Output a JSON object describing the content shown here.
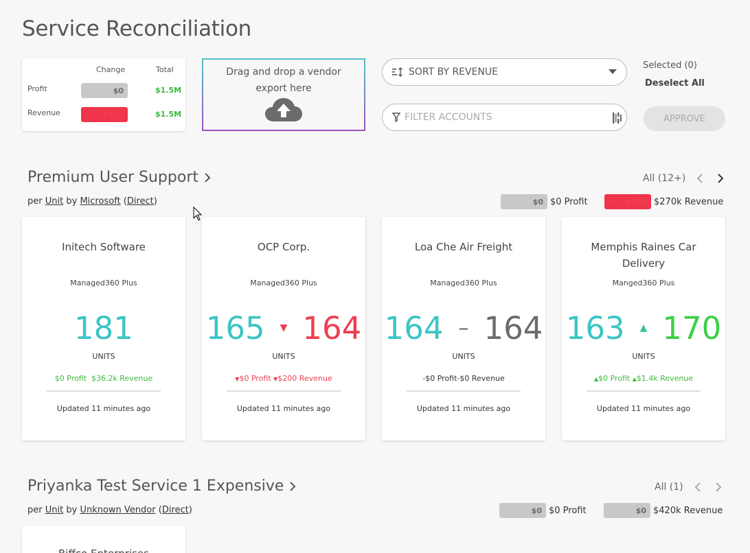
{
  "page": {
    "title": "Service Reconciliation"
  },
  "summary": {
    "col_change": "Change",
    "col_total": "Total",
    "rows": [
      {
        "label": "Profit",
        "change": "$0",
        "total": "$1.5M"
      },
      {
        "label": "Revenue",
        "change": "-$41k",
        "total": "$1.5M"
      }
    ]
  },
  "dropzone": {
    "line1": "Drag and drop a vendor",
    "line2": "export here",
    "icon": "cloud-upload-icon"
  },
  "controls": {
    "sort_label": "SORT BY REVENUE",
    "filter_placeholder": "FILTER ACCOUNTS",
    "selected": "Selected (0)",
    "deselect_all": "Deselect All",
    "approve": "APPROVE"
  },
  "sections": [
    {
      "title": "Premium User Support",
      "sub_per": "per",
      "unit": "Unit",
      "by": "by",
      "vendor": "Microsoft",
      "channel": "Direct",
      "all": "All (12+)",
      "profit_pill": "$0",
      "profit_text": "$0 Profit",
      "revenue_pill": "-$78k",
      "revenue_text": "$270k Revenue",
      "cards": [
        {
          "name": "Initech Software",
          "plan": "Managed360 Plus",
          "from": "181",
          "to": "",
          "units": "UNITS",
          "profit": "$0 Profit",
          "revenue": "$36.2k Revenue",
          "updated": "Updated 11 minutes ago"
        },
        {
          "name": "OCP Corp.",
          "plan": "Managed360 Plus",
          "from": "165",
          "to": "164",
          "units": "UNITS",
          "profit": "$0 Profit",
          "revenue": "$200 Revenue",
          "updated": "Updated 11 minutes ago"
        },
        {
          "name": "Loa Che Air Freight",
          "plan": "Managed360 Plus",
          "from": "164",
          "to": "164",
          "units": "UNITS",
          "profit": "$0 Profit",
          "revenue": "$0 Revenue",
          "updated": "Updated 11 minutes ago"
        },
        {
          "name": "Memphis Raines Car Delivery",
          "plan": "Manged360 Plus",
          "from": "163",
          "to": "170",
          "units": "UNITS",
          "profit": "$0 Profit",
          "revenue": "$1.4k Revenue",
          "updated": "Updated 11 minutes ago"
        }
      ]
    },
    {
      "title": "Priyanka Test Service 1 Expensive",
      "sub_per": "per",
      "unit": "Unit",
      "by": "by",
      "vendor": "Unknown Vendor",
      "channel": "Direct",
      "all": "All (1)",
      "profit_pill": "$0",
      "profit_text": "$0 Profit",
      "revenue_pill": "$0",
      "revenue_text": "$420k Revenue",
      "card_name": "Biffco Enterprises"
    }
  ],
  "colors": {
    "teal": "#3cc4c4",
    "red": "#ef3e50",
    "green": "#3ccf44"
  }
}
